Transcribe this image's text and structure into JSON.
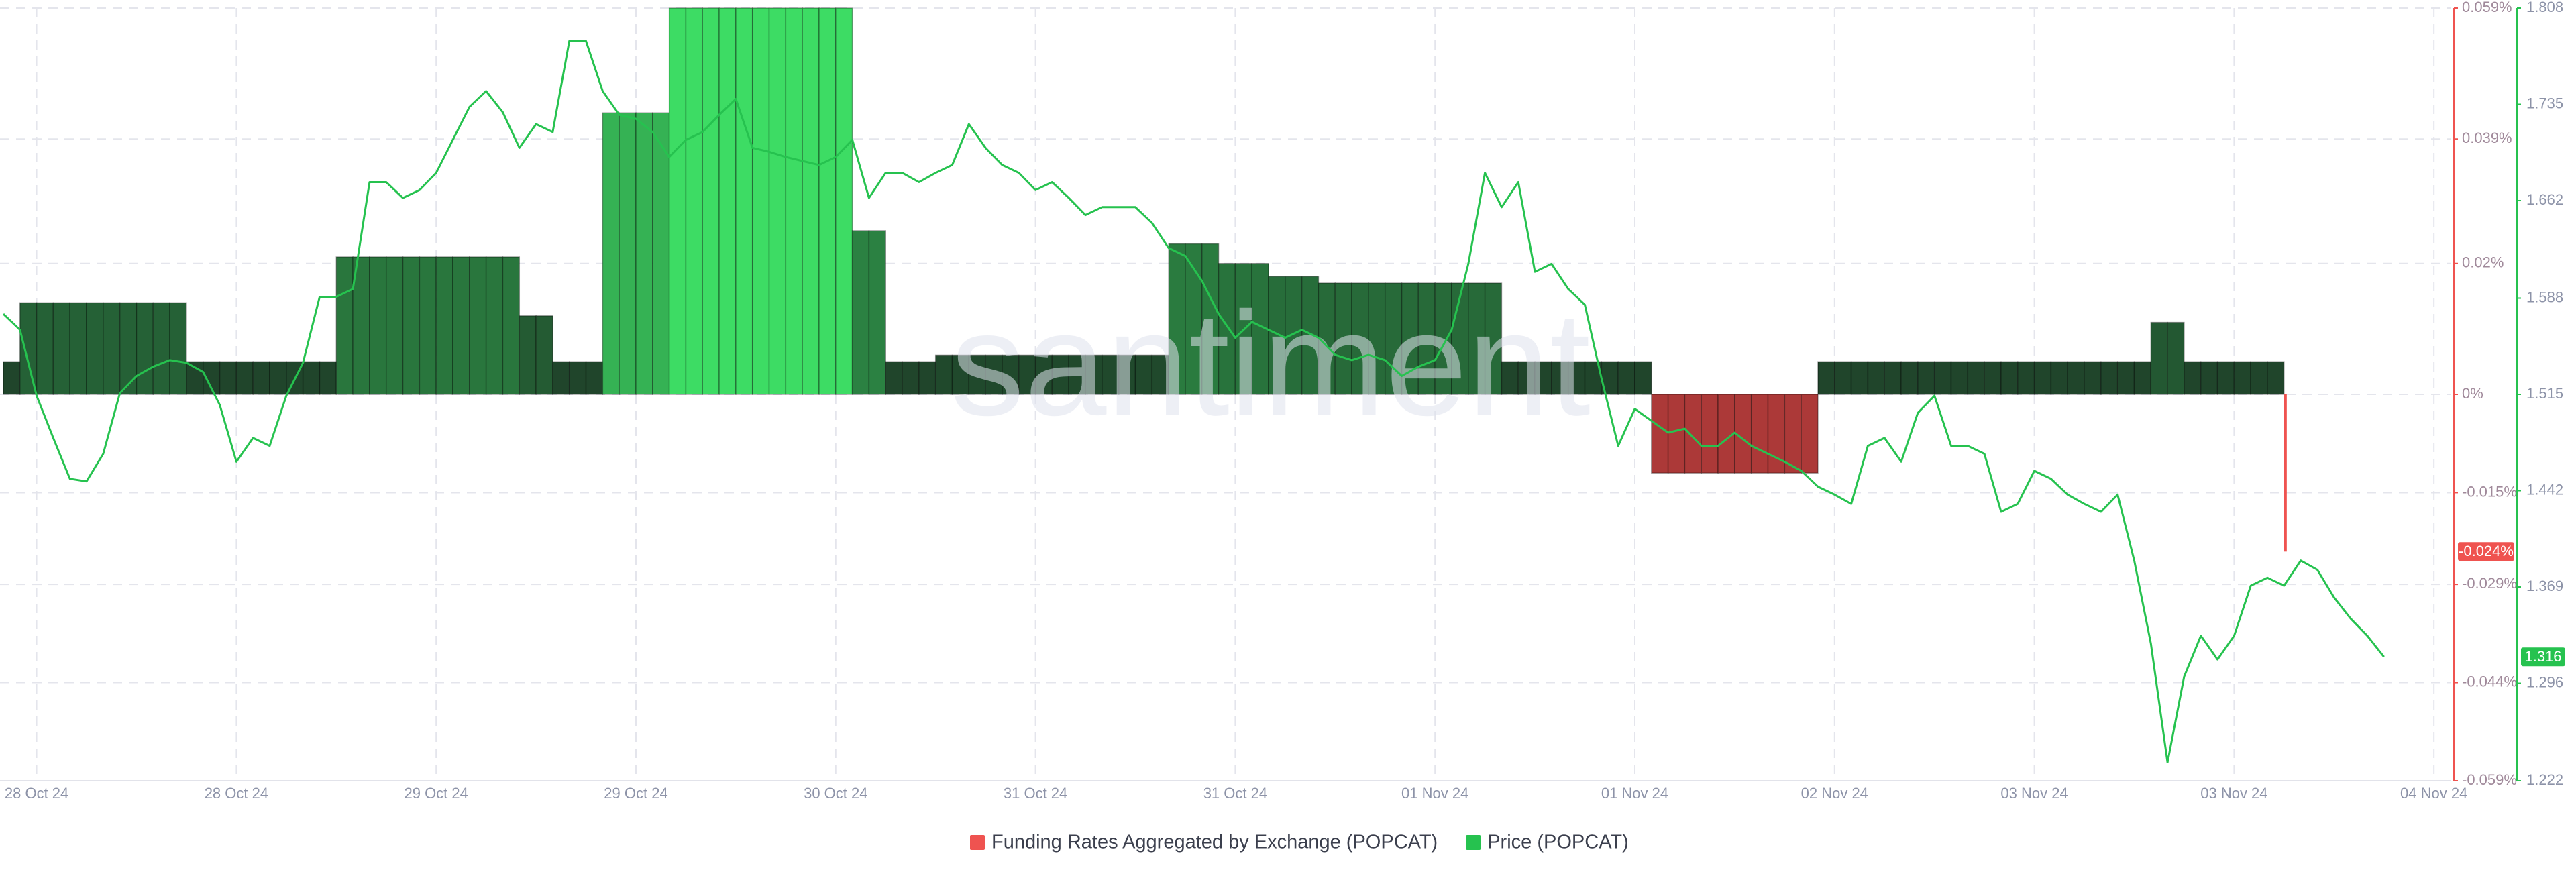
{
  "chart_data": {
    "type": "bar",
    "watermark": "santiment",
    "xlim": [
      -2.2,
      145
    ],
    "xticks": [
      {
        "value": 0,
        "label": "28 Oct 24"
      },
      {
        "value": 12,
        "label": "28 Oct 24"
      },
      {
        "value": 24,
        "label": "29 Oct 24"
      },
      {
        "value": 36,
        "label": "29 Oct 24"
      },
      {
        "value": 48,
        "label": "30 Oct 24"
      },
      {
        "value": 60,
        "label": "31 Oct 24"
      },
      {
        "value": 72,
        "label": "31 Oct 24"
      },
      {
        "value": 84,
        "label": "01 Nov 24"
      },
      {
        "value": 96,
        "label": "01 Nov 24"
      },
      {
        "value": 108,
        "label": "02 Nov 24"
      },
      {
        "value": 120,
        "label": "03 Nov 24"
      },
      {
        "value": 132,
        "label": "03 Nov 24"
      },
      {
        "value": 144,
        "label": "04 Nov 24"
      }
    ],
    "ylim": [
      -0.059,
      0.059
    ],
    "yticks": [
      {
        "value": 0.059,
        "label": "0.059%"
      },
      {
        "value": 0.039,
        "label": "0.039%"
      },
      {
        "value": 0.02,
        "label": "0.02%"
      },
      {
        "value": 0,
        "label": "0%"
      },
      {
        "value": -0.015,
        "label": "-0.015%"
      },
      {
        "value": -0.029,
        "label": "-0.029%"
      },
      {
        "value": -0.044,
        "label": "-0.044%"
      },
      {
        "value": -0.059,
        "label": "-0.059%"
      }
    ],
    "y2lim": [
      1.222,
      1.808
    ],
    "y2ticks": [
      1.808,
      1.735,
      1.662,
      1.588,
      1.515,
      1.442,
      1.369,
      1.296,
      1.222
    ],
    "grid": true,
    "legend": "bottom",
    "series": [
      {
        "name": "Funding Rates Aggregated by Exchange (POPCAT)",
        "type": "bar",
        "color": "#ef5350",
        "positive_color": "#3ddc64",
        "last": {
          "value": -0.024,
          "label": "-0.024%"
        },
        "x": [
          -2,
          -1,
          0,
          1,
          2,
          3,
          4,
          5,
          6,
          7,
          8,
          9,
          10,
          11,
          12,
          13,
          14,
          15,
          16,
          17,
          18,
          19,
          20,
          21,
          22,
          23,
          24,
          25,
          26,
          27,
          28,
          29,
          30,
          31,
          32,
          33,
          34,
          35,
          36,
          37,
          38,
          39,
          40,
          41,
          42,
          43,
          44,
          45,
          46,
          47,
          48,
          49,
          50,
          51,
          52,
          53,
          54,
          55,
          56,
          57,
          58,
          59,
          60,
          61,
          62,
          63,
          64,
          65,
          66,
          67,
          68,
          69,
          70,
          71,
          72,
          73,
          74,
          75,
          76,
          77,
          78,
          79,
          80,
          81,
          82,
          83,
          84,
          85,
          86,
          87,
          88,
          89,
          90,
          91,
          92,
          93,
          94,
          95,
          96,
          97,
          98,
          99,
          100,
          101,
          102,
          103,
          104,
          105,
          106,
          107,
          108,
          109,
          110,
          111,
          112,
          113,
          114,
          115,
          116,
          117,
          118,
          119,
          120,
          121,
          122,
          123,
          124,
          125,
          126,
          127,
          128,
          129,
          130,
          131,
          132,
          133,
          134,
          135
        ],
        "values": [
          0.005,
          0.014,
          0.014,
          0.014,
          0.014,
          0.014,
          0.014,
          0.014,
          0.014,
          0.014,
          0.014,
          0.005,
          0.005,
          0.005,
          0.005,
          0.005,
          0.005,
          0.005,
          0.005,
          0.005,
          0.021,
          0.021,
          0.021,
          0.021,
          0.021,
          0.021,
          0.021,
          0.021,
          0.021,
          0.021,
          0.021,
          0.012,
          0.012,
          0.005,
          0.005,
          0.005,
          0.043,
          0.043,
          0.043,
          0.043,
          0.059,
          0.059,
          0.059,
          0.059,
          0.059,
          0.059,
          0.059,
          0.059,
          0.059,
          0.059,
          0.059,
          0.025,
          0.025,
          0.005,
          0.005,
          0.005,
          0.006,
          0.006,
          0.006,
          0.006,
          0.006,
          0.006,
          0.006,
          0.006,
          0.006,
          0.006,
          0.006,
          0.006,
          0.006,
          0.006,
          0.023,
          0.023,
          0.023,
          0.02,
          0.02,
          0.02,
          0.018,
          0.018,
          0.018,
          0.017,
          0.017,
          0.017,
          0.017,
          0.017,
          0.017,
          0.017,
          0.017,
          0.017,
          0.017,
          0.017,
          0.005,
          0.005,
          0.005,
          0.005,
          0.005,
          0.005,
          0.005,
          0.005,
          0.005,
          -0.012,
          -0.012,
          -0.012,
          -0.012,
          -0.012,
          -0.012,
          -0.012,
          -0.012,
          -0.012,
          -0.012,
          0.005,
          0.005,
          0.005,
          0.005,
          0.005,
          0.005,
          0.005,
          0.005,
          0.005,
          0.005,
          0.005,
          0.005,
          0.005,
          0.005,
          0.005,
          0.005,
          0.005,
          0.005,
          0.005,
          0.005,
          0.011,
          0.011,
          0.005,
          0.005,
          0.005,
          0.005,
          0.005,
          0.005,
          -0.024
        ]
      },
      {
        "name": "Price (POPCAT)",
        "type": "line",
        "axis": "y2",
        "color": "#26c24f",
        "last": 1.316,
        "x": [
          -2,
          -1,
          0,
          1,
          2,
          3,
          4,
          5,
          6,
          7,
          8,
          9,
          10,
          11,
          12,
          13,
          14,
          15,
          16,
          17,
          18,
          19,
          20,
          21,
          22,
          23,
          24,
          25,
          26,
          27,
          28,
          29,
          30,
          31,
          32,
          33,
          34,
          35,
          36,
          37,
          38,
          39,
          40,
          41,
          42,
          43,
          44,
          45,
          46,
          47,
          48,
          49,
          50,
          51,
          52,
          53,
          54,
          55,
          56,
          57,
          58,
          59,
          60,
          61,
          62,
          63,
          64,
          65,
          66,
          67,
          68,
          69,
          70,
          71,
          72,
          73,
          74,
          75,
          76,
          77,
          78,
          79,
          80,
          81,
          82,
          83,
          84,
          85,
          86,
          87,
          88,
          89,
          90,
          91,
          92,
          93,
          94,
          95,
          96,
          97,
          98,
          99,
          100,
          101,
          102,
          103,
          104,
          105,
          106,
          107,
          108,
          109,
          110,
          111,
          112,
          113,
          114,
          115,
          116,
          117,
          118,
          119,
          120,
          121,
          122,
          123,
          124,
          125,
          126,
          127,
          128,
          129,
          130,
          131,
          132,
          133,
          134,
          135,
          136,
          137,
          138,
          139,
          140,
          141
        ],
        "values": [
          1.576,
          1.564,
          1.514,
          1.482,
          1.451,
          1.449,
          1.47,
          1.516,
          1.529,
          1.536,
          1.541,
          1.539,
          1.532,
          1.507,
          1.464,
          1.482,
          1.476,
          1.514,
          1.539,
          1.589,
          1.589,
          1.595,
          1.676,
          1.676,
          1.664,
          1.67,
          1.683,
          1.708,
          1.733,
          1.745,
          1.729,
          1.702,
          1.72,
          1.714,
          1.783,
          1.783,
          1.745,
          1.727,
          1.724,
          1.714,
          1.695,
          1.708,
          1.714,
          1.727,
          1.739,
          1.702,
          1.699,
          1.695,
          1.692,
          1.689,
          1.695,
          1.708,
          1.664,
          1.683,
          1.683,
          1.676,
          1.683,
          1.689,
          1.72,
          1.702,
          1.689,
          1.683,
          1.67,
          1.676,
          1.664,
          1.651,
          1.657,
          1.657,
          1.657,
          1.645,
          1.626,
          1.62,
          1.601,
          1.576,
          1.558,
          1.57,
          1.564,
          1.558,
          1.564,
          1.558,
          1.545,
          1.541,
          1.545,
          1.541,
          1.529,
          1.536,
          1.541,
          1.564,
          1.614,
          1.683,
          1.657,
          1.676,
          1.608,
          1.614,
          1.595,
          1.583,
          1.527,
          1.476,
          1.504,
          1.495,
          1.486,
          1.489,
          1.476,
          1.476,
          1.486,
          1.476,
          1.47,
          1.464,
          1.457,
          1.445,
          1.439,
          1.432,
          1.476,
          1.482,
          1.464,
          1.501,
          1.514,
          1.476,
          1.476,
          1.47,
          1.426,
          1.432,
          1.457,
          1.451,
          1.439,
          1.432,
          1.426,
          1.439,
          1.389,
          1.326,
          1.236,
          1.301,
          1.332,
          1.314,
          1.332,
          1.37,
          1.376,
          1.37,
          1.389,
          1.382,
          1.361,
          1.345,
          1.332,
          1.316
        ]
      }
    ]
  }
}
